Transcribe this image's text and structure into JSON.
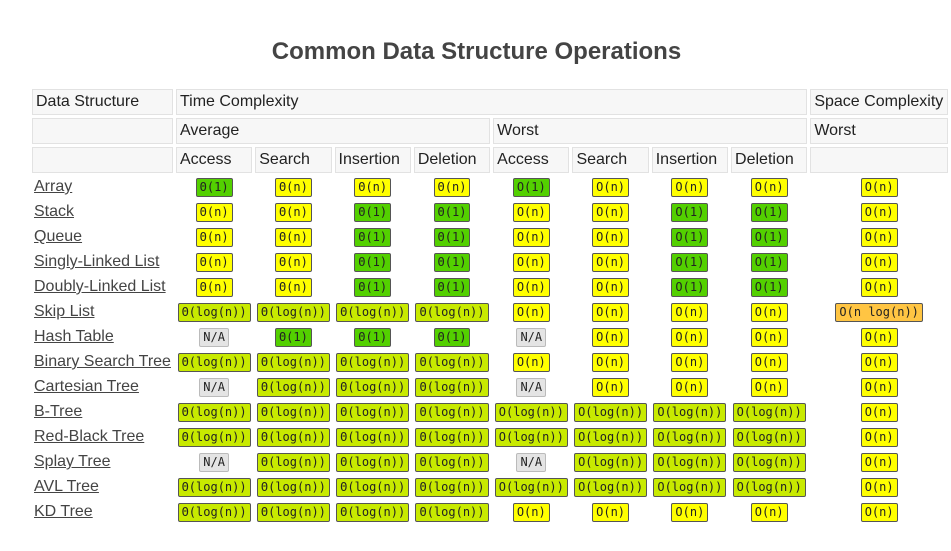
{
  "title": "Common Data Structure Operations",
  "headers": {
    "data_structure": "Data Structure",
    "time_complexity": "Time Complexity",
    "space_complexity": "Space Complexity",
    "average": "Average",
    "worst": "Worst",
    "space_worst": "Worst",
    "columns": [
      "Access",
      "Search",
      "Insertion",
      "Deletion",
      "Access",
      "Search",
      "Insertion",
      "Deletion"
    ]
  },
  "colors": {
    "good": "#53d000",
    "fair": "#c8ea00",
    "bad": "#ffff00",
    "horrible": "#ffc543",
    "na": "#e4e4e4"
  },
  "rows": [
    {
      "name": "Array",
      "cells": [
        {
          "t": "Θ(1)",
          "c": "good"
        },
        {
          "t": "Θ(n)",
          "c": "bad"
        },
        {
          "t": "Θ(n)",
          "c": "bad"
        },
        {
          "t": "Θ(n)",
          "c": "bad"
        },
        {
          "t": "O(1)",
          "c": "good"
        },
        {
          "t": "O(n)",
          "c": "bad"
        },
        {
          "t": "O(n)",
          "c": "bad"
        },
        {
          "t": "O(n)",
          "c": "bad"
        },
        {
          "t": "O(n)",
          "c": "bad"
        }
      ]
    },
    {
      "name": "Stack",
      "cells": [
        {
          "t": "Θ(n)",
          "c": "bad"
        },
        {
          "t": "Θ(n)",
          "c": "bad"
        },
        {
          "t": "Θ(1)",
          "c": "good"
        },
        {
          "t": "Θ(1)",
          "c": "good"
        },
        {
          "t": "O(n)",
          "c": "bad"
        },
        {
          "t": "O(n)",
          "c": "bad"
        },
        {
          "t": "O(1)",
          "c": "good"
        },
        {
          "t": "O(1)",
          "c": "good"
        },
        {
          "t": "O(n)",
          "c": "bad"
        }
      ]
    },
    {
      "name": "Queue",
      "cells": [
        {
          "t": "Θ(n)",
          "c": "bad"
        },
        {
          "t": "Θ(n)",
          "c": "bad"
        },
        {
          "t": "Θ(1)",
          "c": "good"
        },
        {
          "t": "Θ(1)",
          "c": "good"
        },
        {
          "t": "O(n)",
          "c": "bad"
        },
        {
          "t": "O(n)",
          "c": "bad"
        },
        {
          "t": "O(1)",
          "c": "good"
        },
        {
          "t": "O(1)",
          "c": "good"
        },
        {
          "t": "O(n)",
          "c": "bad"
        }
      ]
    },
    {
      "name": "Singly-Linked List",
      "cells": [
        {
          "t": "Θ(n)",
          "c": "bad"
        },
        {
          "t": "Θ(n)",
          "c": "bad"
        },
        {
          "t": "Θ(1)",
          "c": "good"
        },
        {
          "t": "Θ(1)",
          "c": "good"
        },
        {
          "t": "O(n)",
          "c": "bad"
        },
        {
          "t": "O(n)",
          "c": "bad"
        },
        {
          "t": "O(1)",
          "c": "good"
        },
        {
          "t": "O(1)",
          "c": "good"
        },
        {
          "t": "O(n)",
          "c": "bad"
        }
      ]
    },
    {
      "name": "Doubly-Linked List",
      "cells": [
        {
          "t": "Θ(n)",
          "c": "bad"
        },
        {
          "t": "Θ(n)",
          "c": "bad"
        },
        {
          "t": "Θ(1)",
          "c": "good"
        },
        {
          "t": "Θ(1)",
          "c": "good"
        },
        {
          "t": "O(n)",
          "c": "bad"
        },
        {
          "t": "O(n)",
          "c": "bad"
        },
        {
          "t": "O(1)",
          "c": "good"
        },
        {
          "t": "O(1)",
          "c": "good"
        },
        {
          "t": "O(n)",
          "c": "bad"
        }
      ]
    },
    {
      "name": "Skip List",
      "cells": [
        {
          "t": "Θ(log(n))",
          "c": "fair"
        },
        {
          "t": "Θ(log(n))",
          "c": "fair"
        },
        {
          "t": "Θ(log(n))",
          "c": "fair"
        },
        {
          "t": "Θ(log(n))",
          "c": "fair"
        },
        {
          "t": "O(n)",
          "c": "bad"
        },
        {
          "t": "O(n)",
          "c": "bad"
        },
        {
          "t": "O(n)",
          "c": "bad"
        },
        {
          "t": "O(n)",
          "c": "bad"
        },
        {
          "t": "O(n log(n))",
          "c": "horrible"
        }
      ]
    },
    {
      "name": "Hash Table",
      "cells": [
        {
          "t": "N/A",
          "c": "na"
        },
        {
          "t": "Θ(1)",
          "c": "good"
        },
        {
          "t": "Θ(1)",
          "c": "good"
        },
        {
          "t": "Θ(1)",
          "c": "good"
        },
        {
          "t": "N/A",
          "c": "na"
        },
        {
          "t": "O(n)",
          "c": "bad"
        },
        {
          "t": "O(n)",
          "c": "bad"
        },
        {
          "t": "O(n)",
          "c": "bad"
        },
        {
          "t": "O(n)",
          "c": "bad"
        }
      ]
    },
    {
      "name": "Binary Search Tree",
      "cells": [
        {
          "t": "Θ(log(n))",
          "c": "fair"
        },
        {
          "t": "Θ(log(n))",
          "c": "fair"
        },
        {
          "t": "Θ(log(n))",
          "c": "fair"
        },
        {
          "t": "Θ(log(n))",
          "c": "fair"
        },
        {
          "t": "O(n)",
          "c": "bad"
        },
        {
          "t": "O(n)",
          "c": "bad"
        },
        {
          "t": "O(n)",
          "c": "bad"
        },
        {
          "t": "O(n)",
          "c": "bad"
        },
        {
          "t": "O(n)",
          "c": "bad"
        }
      ]
    },
    {
      "name": "Cartesian Tree",
      "cells": [
        {
          "t": "N/A",
          "c": "na"
        },
        {
          "t": "Θ(log(n))",
          "c": "fair"
        },
        {
          "t": "Θ(log(n))",
          "c": "fair"
        },
        {
          "t": "Θ(log(n))",
          "c": "fair"
        },
        {
          "t": "N/A",
          "c": "na"
        },
        {
          "t": "O(n)",
          "c": "bad"
        },
        {
          "t": "O(n)",
          "c": "bad"
        },
        {
          "t": "O(n)",
          "c": "bad"
        },
        {
          "t": "O(n)",
          "c": "bad"
        }
      ]
    },
    {
      "name": "B-Tree",
      "cells": [
        {
          "t": "Θ(log(n))",
          "c": "fair"
        },
        {
          "t": "Θ(log(n))",
          "c": "fair"
        },
        {
          "t": "Θ(log(n))",
          "c": "fair"
        },
        {
          "t": "Θ(log(n))",
          "c": "fair"
        },
        {
          "t": "O(log(n))",
          "c": "fair"
        },
        {
          "t": "O(log(n))",
          "c": "fair"
        },
        {
          "t": "O(log(n))",
          "c": "fair"
        },
        {
          "t": "O(log(n))",
          "c": "fair"
        },
        {
          "t": "O(n)",
          "c": "bad"
        }
      ]
    },
    {
      "name": "Red-Black Tree",
      "cells": [
        {
          "t": "Θ(log(n))",
          "c": "fair"
        },
        {
          "t": "Θ(log(n))",
          "c": "fair"
        },
        {
          "t": "Θ(log(n))",
          "c": "fair"
        },
        {
          "t": "Θ(log(n))",
          "c": "fair"
        },
        {
          "t": "O(log(n))",
          "c": "fair"
        },
        {
          "t": "O(log(n))",
          "c": "fair"
        },
        {
          "t": "O(log(n))",
          "c": "fair"
        },
        {
          "t": "O(log(n))",
          "c": "fair"
        },
        {
          "t": "O(n)",
          "c": "bad"
        }
      ]
    },
    {
      "name": "Splay Tree",
      "cells": [
        {
          "t": "N/A",
          "c": "na"
        },
        {
          "t": "Θ(log(n))",
          "c": "fair"
        },
        {
          "t": "Θ(log(n))",
          "c": "fair"
        },
        {
          "t": "Θ(log(n))",
          "c": "fair"
        },
        {
          "t": "N/A",
          "c": "na"
        },
        {
          "t": "O(log(n))",
          "c": "fair"
        },
        {
          "t": "O(log(n))",
          "c": "fair"
        },
        {
          "t": "O(log(n))",
          "c": "fair"
        },
        {
          "t": "O(n)",
          "c": "bad"
        }
      ]
    },
    {
      "name": "AVL Tree",
      "cells": [
        {
          "t": "Θ(log(n))",
          "c": "fair"
        },
        {
          "t": "Θ(log(n))",
          "c": "fair"
        },
        {
          "t": "Θ(log(n))",
          "c": "fair"
        },
        {
          "t": "Θ(log(n))",
          "c": "fair"
        },
        {
          "t": "O(log(n))",
          "c": "fair"
        },
        {
          "t": "O(log(n))",
          "c": "fair"
        },
        {
          "t": "O(log(n))",
          "c": "fair"
        },
        {
          "t": "O(log(n))",
          "c": "fair"
        },
        {
          "t": "O(n)",
          "c": "bad"
        }
      ]
    },
    {
      "name": "KD Tree",
      "cells": [
        {
          "t": "Θ(log(n))",
          "c": "fair"
        },
        {
          "t": "Θ(log(n))",
          "c": "fair"
        },
        {
          "t": "Θ(log(n))",
          "c": "fair"
        },
        {
          "t": "Θ(log(n))",
          "c": "fair"
        },
        {
          "t": "O(n)",
          "c": "bad"
        },
        {
          "t": "O(n)",
          "c": "bad"
        },
        {
          "t": "O(n)",
          "c": "bad"
        },
        {
          "t": "O(n)",
          "c": "bad"
        },
        {
          "t": "O(n)",
          "c": "bad"
        }
      ]
    }
  ]
}
